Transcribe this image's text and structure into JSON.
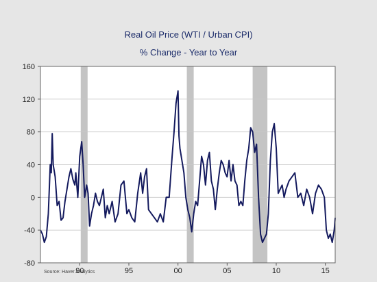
{
  "chart_data": {
    "type": "line",
    "title": "Real Oil Price (WTI / Urban CPI)",
    "subtitle": "% Change - Year to Year",
    "ylim": [
      -80,
      160
    ],
    "yticks": [
      160,
      120,
      80,
      40,
      0,
      -40,
      -80
    ],
    "xlim": [
      1986.0,
      2016.0
    ],
    "xticks": [
      {
        "value": 1990,
        "label": "90"
      },
      {
        "value": 1995,
        "label": "95"
      },
      {
        "value": 2000,
        "label": "00"
      },
      {
        "value": 2005,
        "label": "05"
      },
      {
        "value": 2010,
        "label": "10"
      },
      {
        "value": 2015,
        "label": "15"
      }
    ],
    "grid": true,
    "recessions": [
      [
        1990.1,
        1990.8
      ],
      [
        2000.9,
        2001.6
      ],
      [
        2007.6,
        2009.1
      ]
    ],
    "series": [
      {
        "color": "#141a5e",
        "x": [
          1986.0,
          1986.2,
          1986.4,
          1986.6,
          1986.8,
          1987.0,
          1987.1,
          1987.2,
          1987.3,
          1987.5,
          1987.7,
          1987.9,
          1988.1,
          1988.3,
          1988.5,
          1988.7,
          1988.9,
          1989.1,
          1989.3,
          1989.5,
          1989.6,
          1989.8,
          1990.0,
          1990.2,
          1990.35,
          1990.5,
          1990.7,
          1990.85,
          1991.0,
          1991.2,
          1991.4,
          1991.6,
          1991.8,
          1992.0,
          1992.2,
          1992.4,
          1992.6,
          1992.8,
          1993.0,
          1993.3,
          1993.6,
          1993.9,
          1994.2,
          1994.5,
          1994.8,
          1995.0,
          1995.3,
          1995.6,
          1995.9,
          1996.2,
          1996.4,
          1996.6,
          1996.8,
          1997.0,
          1997.3,
          1997.6,
          1997.9,
          1998.2,
          1998.5,
          1998.8,
          1999.1,
          1999.4,
          1999.6,
          1999.8,
          2000.0,
          2000.1,
          2000.2,
          2000.4,
          2000.6,
          2000.8,
          2001.0,
          2001.2,
          2001.4,
          2001.6,
          2001.8,
          2002.0,
          2002.2,
          2002.4,
          2002.6,
          2002.8,
          2003.0,
          2003.2,
          2003.4,
          2003.6,
          2003.8,
          2004.0,
          2004.2,
          2004.4,
          2004.6,
          2004.8,
          2005.0,
          2005.2,
          2005.4,
          2005.6,
          2005.8,
          2006.0,
          2006.2,
          2006.4,
          2006.6,
          2006.8,
          2007.0,
          2007.2,
          2007.4,
          2007.6,
          2007.8,
          2008.0,
          2008.2,
          2008.4,
          2008.6,
          2008.8,
          2009.0,
          2009.2,
          2009.4,
          2009.6,
          2009.8,
          2010.0,
          2010.2,
          2010.4,
          2010.6,
          2010.8,
          2011.0,
          2011.3,
          2011.6,
          2011.9,
          2012.2,
          2012.5,
          2012.8,
          2013.1,
          2013.4,
          2013.7,
          2014.0,
          2014.3,
          2014.6,
          2014.9,
          2015.1,
          2015.3,
          2015.5,
          2015.7,
          2015.9,
          2016.0
        ],
        "y": [
          -40,
          -45,
          -55,
          -48,
          -20,
          40,
          30,
          78,
          40,
          25,
          -10,
          -5,
          -28,
          -25,
          -5,
          10,
          25,
          35,
          22,
          15,
          30,
          0,
          50,
          68,
          40,
          0,
          15,
          5,
          -35,
          -20,
          -10,
          5,
          -5,
          -10,
          0,
          10,
          -25,
          -10,
          -20,
          -5,
          -30,
          -20,
          15,
          20,
          -20,
          -15,
          -25,
          -30,
          5,
          30,
          5,
          25,
          35,
          -15,
          -20,
          -25,
          -30,
          -20,
          -30,
          0,
          0,
          50,
          80,
          115,
          130,
          75,
          60,
          45,
          30,
          0,
          -15,
          -25,
          -42,
          -20,
          -5,
          -10,
          20,
          50,
          40,
          15,
          45,
          55,
          20,
          10,
          -15,
          10,
          30,
          45,
          40,
          30,
          25,
          45,
          20,
          40,
          20,
          15,
          -10,
          -5,
          -10,
          20,
          45,
          60,
          85,
          80,
          55,
          65,
          0,
          -45,
          -55,
          -50,
          -45,
          -20,
          45,
          80,
          90,
          60,
          5,
          10,
          15,
          0,
          10,
          20,
          25,
          30,
          0,
          5,
          -10,
          10,
          0,
          -20,
          5,
          15,
          10,
          0,
          -40,
          -50,
          -45,
          -55,
          -40,
          -25
        ]
      }
    ],
    "source": "Source:    Haver Analytics"
  }
}
